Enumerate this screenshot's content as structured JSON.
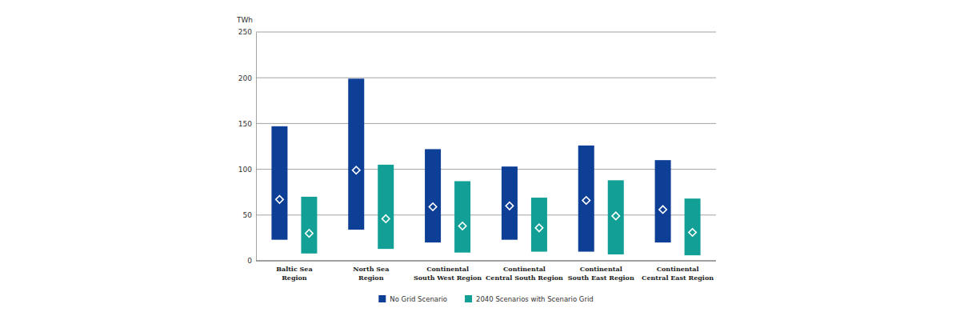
{
  "chart_data": {
    "type": "range_bar",
    "y_label": "TWh",
    "categories": [
      "Baltic Sea\nRegion",
      "North Sea\nRegion",
      "Continental\nSouth West Region",
      "Continental\nCentral South Region",
      "Continental\nSouth East Region",
      "Continental\nCentral East Region"
    ],
    "series": [
      {
        "name": "No Grid Scenario",
        "color": "#0e3f96",
        "marker": "diamond",
        "low": [
          23,
          34,
          20,
          23,
          10,
          20
        ],
        "high": [
          147,
          199,
          122,
          103,
          126,
          110
        ],
        "values": [
          67,
          99,
          59,
          60,
          66,
          56
        ]
      },
      {
        "name": "2040 Scenarios with Scenario Grid",
        "color": "#12a096",
        "marker": "diamond",
        "low": [
          8,
          13,
          9,
          10,
          7,
          6
        ],
        "high": [
          70,
          105,
          87,
          69,
          88,
          68
        ],
        "values": [
          30,
          46,
          38,
          36,
          49,
          31
        ]
      }
    ],
    "ylim": [
      0,
      250
    ],
    "yticks": [
      0,
      50,
      100,
      150,
      200,
      250
    ],
    "grid": true,
    "legend": "bottom"
  }
}
